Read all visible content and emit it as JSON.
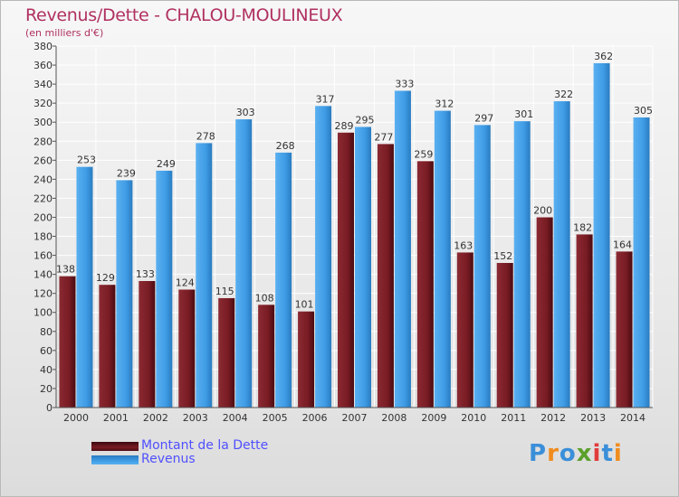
{
  "chart_data": {
    "type": "bar",
    "title": "Revenus/Dette - CHALOU-MOULINEUX",
    "subtitle": "(en milliers d'€)",
    "categories": [
      "2000",
      "2001",
      "2002",
      "2003",
      "2004",
      "2005",
      "2006",
      "2007",
      "2008",
      "2009",
      "2010",
      "2011",
      "2012",
      "2013",
      "2014"
    ],
    "series": [
      {
        "name": "Montant de la Dette",
        "color": "#7a1c24",
        "values": [
          138,
          129,
          133,
          124,
          115,
          108,
          101,
          289,
          277,
          259,
          163,
          152,
          200,
          182,
          164
        ]
      },
      {
        "name": "Revenus",
        "color": "#3f9ce6",
        "values": [
          253,
          239,
          249,
          278,
          303,
          268,
          317,
          295,
          333,
          312,
          297,
          301,
          322,
          362,
          305
        ]
      }
    ],
    "ylim": [
      0,
      380
    ],
    "ytick_step": 20,
    "grid": true,
    "legend_position": "bottom-left",
    "xlabel": "",
    "ylabel": ""
  },
  "legend": {
    "items": [
      {
        "label": "Montant de la Dette",
        "color": "#7a1c24"
      },
      {
        "label": "Revenus",
        "color": "#3f9ce6"
      }
    ]
  },
  "logo": {
    "text": "Proxiti",
    "letters": [
      "P",
      "r",
      "o",
      "x",
      "i",
      "t",
      "i"
    ],
    "colors": [
      "#3b8fd9",
      "#f08c1e",
      "#3b8fd9",
      "#5aa02c",
      "#e23b3b",
      "#3b8fd9",
      "#f08c1e"
    ]
  }
}
